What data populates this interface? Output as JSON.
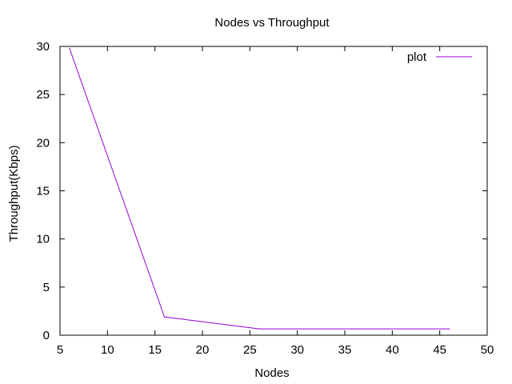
{
  "chart_data": {
    "type": "line",
    "title": "Nodes vs Throughput",
    "xlabel": "Nodes",
    "ylabel": "Throughput(Kbps)",
    "xlim": [
      5,
      50
    ],
    "ylim": [
      0,
      30
    ],
    "x_ticks": [
      5,
      10,
      15,
      20,
      25,
      30,
      35,
      40,
      45,
      50
    ],
    "y_ticks": [
      0,
      5,
      10,
      15,
      20,
      25,
      30
    ],
    "grid": false,
    "legend_position": "top-right",
    "series": [
      {
        "name": "plot",
        "color": "#9400d3",
        "x": [
          6,
          16,
          26,
          36,
          46
        ],
        "y": [
          29.8,
          1.9,
          0.65,
          0.65,
          0.65
        ]
      }
    ]
  }
}
